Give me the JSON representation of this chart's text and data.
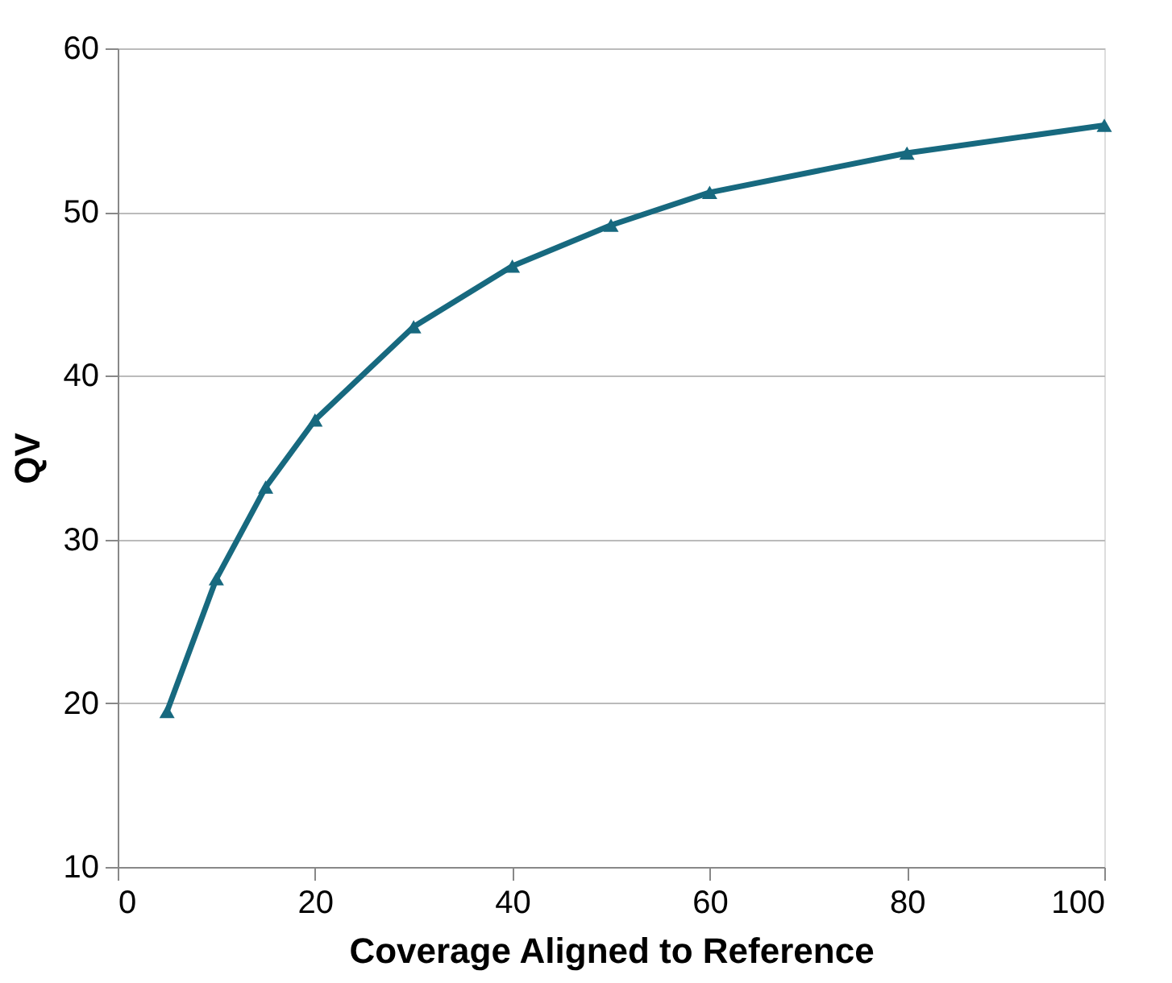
{
  "chart_data": {
    "type": "line",
    "xlabel": "Coverage Aligned to Reference",
    "ylabel": "QV",
    "x": [
      5,
      10,
      15,
      20,
      30,
      40,
      50,
      60,
      80,
      100
    ],
    "series": [
      {
        "color": "#17697f",
        "values": [
          19.5,
          27.6,
          33.2,
          37.3,
          43.0,
          46.7,
          49.2,
          51.2,
          53.6,
          55.3
        ]
      }
    ],
    "xlim": [
      0,
      100
    ],
    "xticks": [
      0,
      20,
      40,
      60,
      80,
      100
    ],
    "ylim": [
      10,
      60
    ],
    "yticks": [
      10,
      20,
      30,
      40,
      50,
      60
    ],
    "grid": "y",
    "marker": "triangle",
    "line_style": "solid"
  }
}
